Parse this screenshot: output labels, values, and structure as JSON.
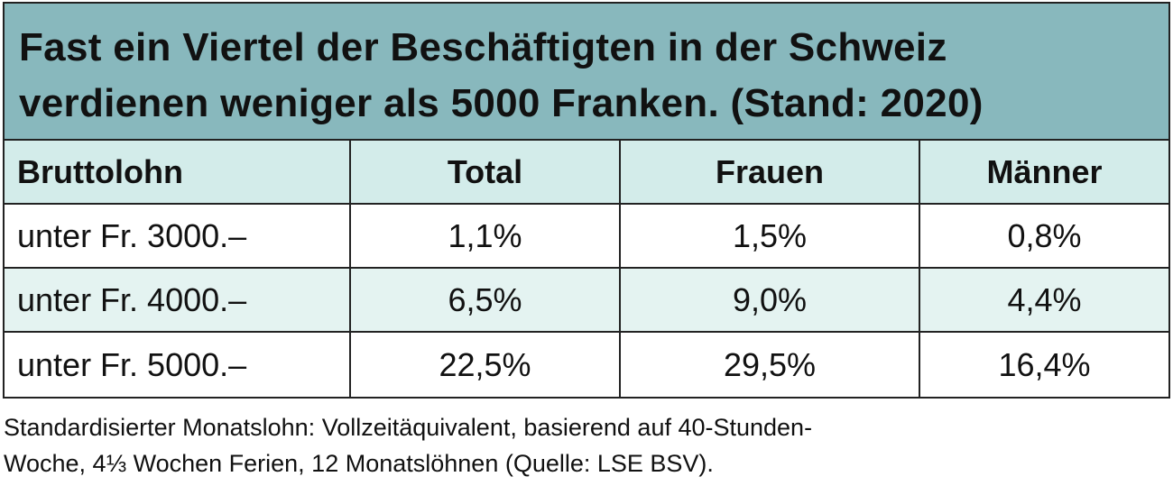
{
  "chart_data": {
    "type": "table",
    "title": "Fast ein Viertel der Beschäftigten in der Schweiz verdienen weniger als 5000 Franken. (Stand: 2020)",
    "title_lines": [
      "Fast ein Viertel der Beschäftigten in der Schweiz",
      "verdienen weniger als 5000 Franken. (Stand: 2020)"
    ],
    "columns": [
      "Bruttolohn",
      "Total",
      "Frauen",
      "Männer"
    ],
    "rows": [
      [
        "unter Fr. 3000.–",
        "1,1%",
        "1,5%",
        "0,8%"
      ],
      [
        "unter Fr. 4000.–",
        "6,5%",
        "9,0%",
        "4,4%"
      ],
      [
        "unter Fr. 5000.–",
        "22,5%",
        "29,5%",
        "16,4%"
      ]
    ],
    "footnote_lines": [
      "Standardisierter Monatslohn: Vollzeitäquivalent, basierend auf 40-Stunden-",
      "Woche, 4⅓ Wochen Ferien, 12 Monatslöhnen (Quelle: LSE BSV)."
    ]
  },
  "colors": {
    "title_bg": "#88b8bd",
    "header_bg": "#d3ecea",
    "alt_row_bg": "#e4f3f1"
  }
}
